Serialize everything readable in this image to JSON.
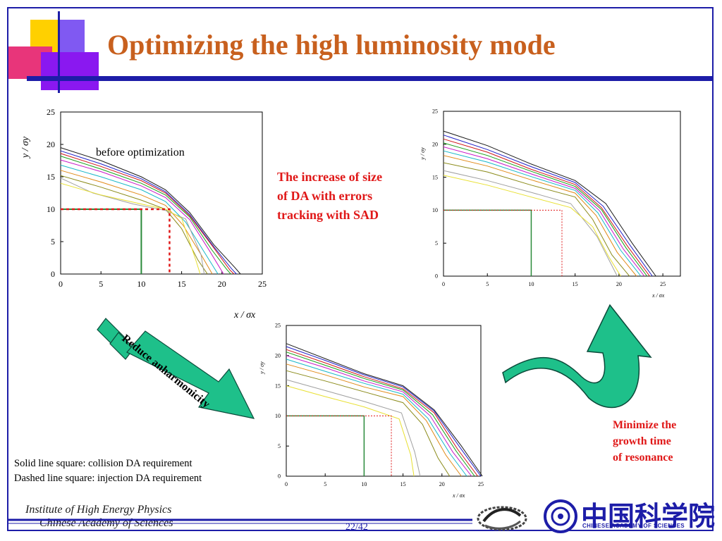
{
  "slide": {
    "title": "Optimizing the high luminosity mode",
    "page": "22/42"
  },
  "annotations": {
    "increase_text": [
      "The increase of size",
      "of DA with errors",
      "tracking with SAD"
    ],
    "minimize_text": [
      "Minimize the",
      "growth time",
      "of resonance"
    ],
    "arrow_label": "Reduce anharmonicity",
    "legend": [
      "Solid line square: collision DA requirement",
      "Dashed line square: injection DA requirement"
    ]
  },
  "footer": {
    "institute_line1": "Institute of High Energy Physics",
    "institute_line2": "Chinese Academy of Sciences",
    "cas_chinese": "中国科学院",
    "cas_english": "CHINESE ACADEMY OF SCIENCES"
  },
  "colors": {
    "title": "#c8601e",
    "accent_blue": "#1d1da8",
    "note_red": "#e01818",
    "arrow_green": "#1ec08a",
    "box_green": "#2a8a3a",
    "box_red": "#e01818"
  },
  "chart_data": [
    {
      "type": "line",
      "panel": "before",
      "annotation": "before optimization",
      "xlabel": "x / σx",
      "ylabel": "y / σy",
      "xlim": [
        0,
        25
      ],
      "ylim": [
        0,
        25
      ],
      "xticks": [
        "0",
        "5",
        "10",
        "15",
        "20",
        "25"
      ],
      "yticks": [
        "0",
        "5",
        "10",
        "15",
        "20",
        "25"
      ],
      "solid_square": [
        10,
        10
      ],
      "dashed_square": [
        13.5,
        10
      ],
      "series": [
        {
          "x": [
            0,
            5,
            10,
            13,
            16,
            19,
            21.6,
            22.3
          ],
          "y": [
            19.5,
            17.5,
            15.0,
            13.0,
            9.5,
            4.5,
            1.0,
            0
          ]
        },
        {
          "x": [
            0,
            5,
            10,
            13,
            16,
            19,
            21.2,
            21.8
          ],
          "y": [
            19.0,
            17.0,
            14.7,
            12.7,
            9.2,
            4.2,
            0.8,
            0
          ]
        },
        {
          "x": [
            0,
            5,
            10,
            13,
            16,
            19,
            21.0,
            21.5
          ],
          "y": [
            18.6,
            16.6,
            14.4,
            12.5,
            9.0,
            4.0,
            0.6,
            0
          ]
        },
        {
          "x": [
            0,
            5,
            10,
            13,
            16,
            18.7,
            20.6,
            21.1
          ],
          "y": [
            18.2,
            16.2,
            14.0,
            12.2,
            8.8,
            3.8,
            0.7,
            0
          ]
        },
        {
          "x": [
            0,
            5,
            10,
            13,
            16,
            18.5,
            20.2
          ],
          "y": [
            17.6,
            15.8,
            13.6,
            11.8,
            8.4,
            3.5,
            0
          ]
        },
        {
          "x": [
            0,
            5,
            10,
            13,
            15.5,
            18,
            19.5
          ],
          "y": [
            16.8,
            15.0,
            13.0,
            11.2,
            8.0,
            3.0,
            0
          ]
        },
        {
          "x": [
            0,
            5,
            10,
            13,
            15.2,
            17.5,
            18.8
          ],
          "y": [
            16.0,
            14.2,
            12.2,
            10.6,
            7.5,
            2.8,
            0
          ]
        },
        {
          "x": [
            0,
            5,
            10,
            13,
            15,
            17,
            18.2
          ],
          "y": [
            15.2,
            13.4,
            11.4,
            10.0,
            7.0,
            2.2,
            0
          ]
        },
        {
          "x": [
            0,
            4,
            9,
            13,
            15.5,
            17.4,
            17.8
          ],
          "y": [
            14.8,
            12.5,
            10.8,
            9.8,
            8.5,
            3.0,
            0
          ]
        },
        {
          "x": [
            0,
            5,
            10,
            13,
            15,
            16.8,
            17.3
          ],
          "y": [
            14.0,
            12.2,
            10.8,
            10.0,
            8.6,
            2.0,
            0
          ]
        }
      ]
    },
    {
      "type": "line",
      "panel": "after reduce anharmonicity",
      "xlabel": "x / σx",
      "ylabel": "y / σy",
      "xlim": [
        0,
        25
      ],
      "ylim": [
        0,
        25
      ],
      "xticks": [
        "0",
        "5",
        "10",
        "15",
        "20",
        "25"
      ],
      "yticks": [
        "0",
        "5",
        "10",
        "15",
        "20",
        "25"
      ],
      "solid_square": [
        10,
        10
      ],
      "dashed_square": [
        13.5,
        10
      ],
      "series": [
        {
          "x": [
            0,
            5,
            10,
            15,
            19,
            22.5,
            25.2
          ],
          "y": [
            22.0,
            19.5,
            17.0,
            15.0,
            11.0,
            5.0,
            0
          ]
        },
        {
          "x": [
            0,
            5,
            10,
            15,
            19,
            22.3,
            25.0
          ],
          "y": [
            21.5,
            19.2,
            16.8,
            14.8,
            10.8,
            4.8,
            0
          ]
        },
        {
          "x": [
            0,
            5,
            10,
            15,
            19,
            22,
            24.6
          ],
          "y": [
            21.0,
            18.8,
            16.5,
            14.5,
            10.5,
            4.5,
            0
          ]
        },
        {
          "x": [
            0,
            5,
            10,
            15,
            18.8,
            21.8,
            24.2
          ],
          "y": [
            20.6,
            18.4,
            16.2,
            14.3,
            10.2,
            4.2,
            0
          ]
        },
        {
          "x": [
            0,
            5,
            10,
            15,
            18.5,
            21.4,
            23.8
          ],
          "y": [
            20.0,
            18.0,
            15.8,
            14.0,
            10.0,
            4.0,
            0
          ]
        },
        {
          "x": [
            0,
            5,
            10,
            15,
            18.2,
            21,
            23.2
          ],
          "y": [
            19.4,
            17.4,
            15.4,
            13.6,
            9.6,
            3.8,
            0
          ]
        },
        {
          "x": [
            0,
            5,
            10,
            15,
            18,
            20.5,
            22.5
          ],
          "y": [
            18.6,
            16.8,
            14.8,
            13.2,
            9.2,
            3.5,
            0
          ]
        },
        {
          "x": [
            0,
            5,
            10,
            15,
            17.5,
            19.5,
            21.0
          ],
          "y": [
            17.5,
            15.8,
            14.0,
            12.2,
            8.6,
            3.0,
            0
          ]
        },
        {
          "x": [
            0,
            5,
            10,
            14.8,
            16.5,
            17.2
          ],
          "y": [
            16.0,
            14.2,
            12.4,
            10.5,
            4.0,
            0
          ]
        },
        {
          "x": [
            0,
            5,
            10,
            14.5,
            16.0,
            16.4
          ],
          "y": [
            15.0,
            13.2,
            11.5,
            9.5,
            3.5,
            0
          ]
        }
      ]
    },
    {
      "type": "line",
      "panel": "with SAD errors tracking",
      "xlabel": "x / σx",
      "ylabel": "y / σy",
      "xlim": [
        0,
        27
      ],
      "ylim": [
        0,
        25
      ],
      "xticks": [
        "0",
        "5",
        "10",
        "15",
        "20",
        "25"
      ],
      "yticks": [
        "0",
        "5",
        "10",
        "15",
        "20",
        "25"
      ],
      "solid_square": [
        10,
        10
      ],
      "dashed_square": [
        13.5,
        10
      ],
      "series": [
        {
          "x": [
            0,
            5,
            10,
            15,
            18.5,
            21.5,
            24.2
          ],
          "y": [
            22.0,
            19.8,
            17.0,
            14.5,
            11.0,
            5.0,
            0
          ]
        },
        {
          "x": [
            0,
            5,
            10,
            15,
            18.2,
            21.2,
            23.8
          ],
          "y": [
            21.4,
            19.2,
            16.6,
            14.2,
            10.6,
            4.8,
            0
          ]
        },
        {
          "x": [
            0,
            5,
            10,
            15,
            18,
            21,
            23.5
          ],
          "y": [
            20.8,
            18.8,
            16.2,
            13.9,
            10.4,
            4.5,
            0
          ]
        },
        {
          "x": [
            0,
            5,
            10,
            15,
            18,
            20.8,
            23.2
          ],
          "y": [
            20.2,
            18.3,
            15.9,
            13.6,
            10.1,
            4.3,
            0
          ]
        },
        {
          "x": [
            0,
            5,
            10,
            15,
            17.8,
            20.5,
            22.9
          ],
          "y": [
            19.6,
            17.8,
            15.5,
            13.3,
            9.9,
            4.1,
            0
          ]
        },
        {
          "x": [
            0,
            5,
            10,
            15,
            17.6,
            20.2,
            22.5
          ],
          "y": [
            19.0,
            17.3,
            15.1,
            13.0,
            9.6,
            3.9,
            0
          ]
        },
        {
          "x": [
            0,
            5,
            10,
            15,
            17.4,
            19.8,
            22.0
          ],
          "y": [
            18.3,
            16.7,
            14.6,
            12.6,
            9.2,
            3.6,
            0
          ]
        },
        {
          "x": [
            0,
            5,
            10,
            15,
            17.0,
            19.2,
            21.2
          ],
          "y": [
            17.2,
            15.8,
            13.8,
            12.0,
            8.6,
            3.2,
            0
          ]
        },
        {
          "x": [
            0,
            5,
            10,
            14.5,
            17.5,
            19.8
          ],
          "y": [
            16.0,
            14.5,
            12.7,
            11.0,
            6.0,
            0
          ]
        },
        {
          "x": [
            0,
            5,
            10,
            14.5,
            17.0,
            18.8,
            20.2
          ],
          "y": [
            15.3,
            13.8,
            12.0,
            10.4,
            7.5,
            3.0,
            0
          ]
        }
      ]
    }
  ]
}
